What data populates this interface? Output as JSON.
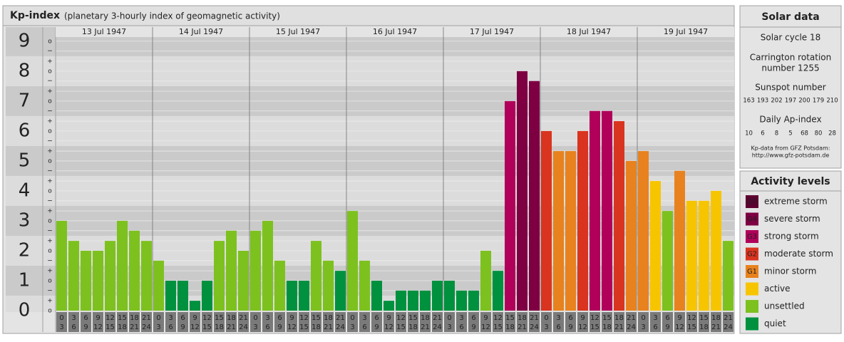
{
  "header": {
    "title": "Kp-index",
    "subtitle": "(planetary 3-hourly index of geomagnetic activity)"
  },
  "chart_data": {
    "type": "bar",
    "days": [
      "13 Jul 1947",
      "14 Jul 1947",
      "15 Jul 1947",
      "16 Jul 1947",
      "17 Jul 1947",
      "18 Jul 1947",
      "19 Jul 1947"
    ],
    "hours": [
      [
        0,
        3
      ],
      [
        3,
        6
      ],
      [
        6,
        9
      ],
      [
        9,
        12
      ],
      [
        12,
        15
      ],
      [
        15,
        18
      ],
      [
        18,
        21
      ],
      [
        21,
        24
      ]
    ],
    "values": [
      3,
      2.33,
      2,
      2,
      2.33,
      3,
      2.67,
      2.33,
      1.67,
      1,
      1,
      0.33,
      1,
      2.33,
      2.67,
      2,
      2.67,
      3,
      1.67,
      1,
      1,
      2.33,
      1.67,
      1.33,
      3.33,
      1.67,
      1,
      0.33,
      0.67,
      0.67,
      0.67,
      1,
      1,
      0.67,
      0.67,
      2,
      1.33,
      7,
      8,
      7.67,
      6,
      5.33,
      5.33,
      6,
      6.67,
      6.67,
      6.33,
      5,
      5.33,
      4.33,
      3.33,
      4.67,
      3.67,
      3.67,
      4,
      2.33
    ],
    "colors": [
      "#7dc11f",
      "#7dc11f",
      "#7dc11f",
      "#7dc11f",
      "#7dc11f",
      "#7dc11f",
      "#7dc11f",
      "#7dc11f",
      "#7dc11f",
      "#00913f",
      "#00913f",
      "#00913f",
      "#00913f",
      "#7dc11f",
      "#7dc11f",
      "#7dc11f",
      "#7dc11f",
      "#7dc11f",
      "#7dc11f",
      "#00913f",
      "#00913f",
      "#7dc11f",
      "#7dc11f",
      "#00913f",
      "#7dc11f",
      "#7dc11f",
      "#00913f",
      "#00913f",
      "#00913f",
      "#00913f",
      "#00913f",
      "#00913f",
      "#00913f",
      "#00913f",
      "#00913f",
      "#7dc11f",
      "#00913f",
      "#b0005a",
      "#7e0043",
      "#7e0043",
      "#d9341f",
      "#e8821e",
      "#e8821e",
      "#d9341f",
      "#b0005a",
      "#b0005a",
      "#d9341f",
      "#e8821e",
      "#e8821e",
      "#f7c500",
      "#7dc11f",
      "#e8821e",
      "#f7c500",
      "#f7c500",
      "#f7c500",
      "#7dc11f"
    ],
    "ylim": [
      0,
      9.33
    ],
    "yticks": [
      0,
      1,
      2,
      3,
      4,
      5,
      6,
      7,
      8,
      9
    ],
    "minor_ticks": [
      {
        "value": 0,
        "label": "o"
      },
      {
        "value": 0.33,
        "label": "+"
      },
      {
        "value": 0.67,
        "label": "−"
      },
      {
        "value": 1,
        "label": "o"
      },
      {
        "value": 1.33,
        "label": "+"
      },
      {
        "value": 1.67,
        "label": "−"
      },
      {
        "value": 2,
        "label": "o"
      },
      {
        "value": 2.33,
        "label": "+"
      },
      {
        "value": 2.67,
        "label": "−"
      },
      {
        "value": 3,
        "label": "o"
      },
      {
        "value": 3.33,
        "label": "+"
      },
      {
        "value": 3.67,
        "label": "−"
      },
      {
        "value": 4,
        "label": "o"
      },
      {
        "value": 4.33,
        "label": "+"
      },
      {
        "value": 4.67,
        "label": "−"
      },
      {
        "value": 5,
        "label": "o"
      },
      {
        "value": 5.33,
        "label": "+"
      },
      {
        "value": 5.67,
        "label": "−"
      },
      {
        "value": 6,
        "label": "o"
      },
      {
        "value": 6.33,
        "label": "+"
      },
      {
        "value": 6.67,
        "label": "−"
      },
      {
        "value": 7,
        "label": "o"
      },
      {
        "value": 7.33,
        "label": "+"
      },
      {
        "value": 7.67,
        "label": "−"
      },
      {
        "value": 8,
        "label": "o"
      },
      {
        "value": 8.33,
        "label": "+"
      },
      {
        "value": 8.67,
        "label": "−"
      },
      {
        "value": 9,
        "label": "o"
      }
    ]
  },
  "solar_data": {
    "title": "Solar data",
    "cycle": "Solar cycle 18",
    "carrington": [
      "Carrington rotation",
      "number 1255"
    ],
    "sunspot_title": "Sunspot number",
    "sunspot": [
      163,
      193,
      202,
      197,
      200,
      179,
      210
    ],
    "ap_title": "Daily Ap-index",
    "ap": [
      10,
      6,
      8,
      5,
      68,
      80,
      28
    ],
    "source": [
      "Kp-data from GFZ Potsdam:",
      "http://www.gfz-potsdam.de"
    ]
  },
  "activity_levels": {
    "title": "Activity levels",
    "items": [
      {
        "code": "G5",
        "label": "extreme storm",
        "color": "#5c0030"
      },
      {
        "code": "G4",
        "label": "severe storm",
        "color": "#7e0043"
      },
      {
        "code": "G3",
        "label": "strong storm",
        "color": "#b0005a"
      },
      {
        "code": "G2",
        "label": "moderate storm",
        "color": "#d9341f"
      },
      {
        "code": "G1",
        "label": "minor storm",
        "color": "#e8821e"
      },
      {
        "label": "active",
        "color": "#f7c500"
      },
      {
        "label": "unsettled",
        "color": "#7dc11f"
      },
      {
        "label": "quiet",
        "color": "#00913f"
      }
    ]
  }
}
